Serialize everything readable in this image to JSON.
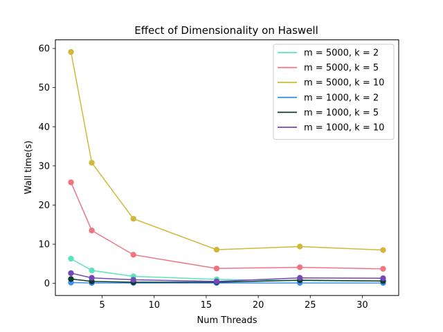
{
  "chart_data": {
    "type": "line",
    "title": "Effect of Dimensionality on Haswell",
    "xlabel": "Num Threads",
    "ylabel": "Wall time(s)",
    "xlim": [
      0.5,
      33.5
    ],
    "ylim": [
      -3.1,
      62.2
    ],
    "xticks": [
      5,
      10,
      15,
      20,
      25,
      30
    ],
    "yticks": [
      0,
      10,
      20,
      30,
      40,
      50,
      60
    ],
    "grid": false,
    "legend": "top-right",
    "x": [
      2,
      4,
      8,
      16,
      24,
      32
    ],
    "series": [
      {
        "name": "m = 5000, k = 2",
        "color": "#5fe3bd",
        "values": [
          6.3,
          3.3,
          1.8,
          1.0,
          0.7,
          0.6
        ]
      },
      {
        "name": "m = 5000, k = 5",
        "color": "#ee7680",
        "values": [
          25.8,
          13.5,
          7.3,
          3.8,
          4.1,
          3.7
        ]
      },
      {
        "name": "m = 5000, k = 10",
        "color": "#d0b83a",
        "values": [
          59.1,
          30.8,
          16.5,
          8.6,
          9.4,
          8.5
        ]
      },
      {
        "name": "m = 1000, k = 2",
        "color": "#3c91f0",
        "values": [
          0.2,
          0.1,
          0.1,
          0.1,
          0.1,
          0.1
        ]
      },
      {
        "name": "m = 1000, k = 5",
        "color": "#0d3b2a",
        "values": [
          1.1,
          0.5,
          0.3,
          0.3,
          0.8,
          0.6
        ]
      },
      {
        "name": "m = 1000, k = 10",
        "color": "#7248b8",
        "values": [
          2.6,
          1.4,
          0.9,
          0.5,
          1.4,
          1.3
        ]
      }
    ]
  }
}
